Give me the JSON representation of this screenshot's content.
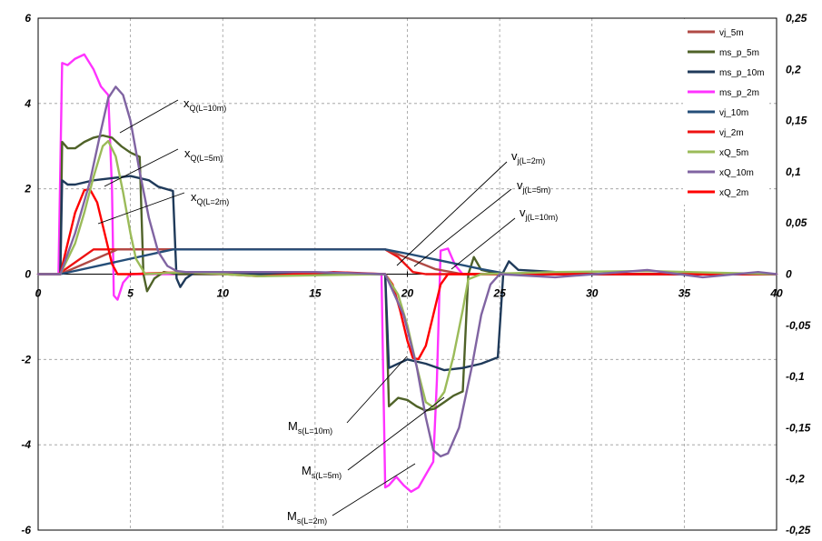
{
  "colors": {
    "vj_5m": "#b04a45",
    "ms_p_5m": "#4f6228",
    "ms_p_10m": "#1f3a5a",
    "ms_p_2m": "#ff33ff",
    "vj_10m": "#254e78",
    "vj_2m": "#ee1111",
    "xQ_5m": "#9bbb59",
    "xQ_10m": "#8064a2",
    "xQ_2m": "#ff0000"
  },
  "chart_data": {
    "type": "line",
    "title": "",
    "xlabel": "",
    "ylabel": "",
    "xlim": [
      0,
      40
    ],
    "ylim": [
      -6,
      6
    ],
    "y2lim": [
      -0.25,
      0.25
    ],
    "grid": true,
    "legend_position": "top-right",
    "x_ticks": [
      "0",
      "5",
      "10",
      "15",
      "20",
      "25",
      "30",
      "35",
      "40"
    ],
    "y_ticks": [
      "6",
      "4",
      "2",
      "0",
      "-2",
      "-4",
      "-6"
    ],
    "y2_ticks": [
      "0,25",
      "0,2",
      "0,15",
      "0,1",
      "0,05",
      "0",
      "-0,05",
      "-0,1",
      "-0,15",
      "-0,2",
      "-0,25"
    ],
    "legend": [
      "vj_5m",
      "ms_p_5m",
      "ms_p_10m",
      "ms_p_2m",
      "vj_10m",
      "vj_2m",
      "xQ_5m",
      "xQ_10m",
      "xQ_2m"
    ],
    "series": [
      {
        "name": "ms_p_2m",
        "axis": "left",
        "x": [
          0,
          1.1,
          1.3,
          1.6,
          2.0,
          2.5,
          3.0,
          3.4,
          3.8,
          4.0,
          4.1,
          4.3,
          4.6,
          5.0,
          6,
          8,
          10,
          12,
          15,
          18.6,
          18.8,
          19.0,
          19.4,
          19.8,
          20.2,
          20.6,
          21.0,
          21.4,
          21.6,
          21.8,
          22.2,
          22.6,
          23,
          25,
          28,
          30,
          35,
          40
        ],
        "y": [
          0,
          0,
          4.95,
          4.9,
          5.05,
          5.15,
          4.8,
          4.4,
          4.2,
          2.0,
          -0.5,
          -0.6,
          -0.2,
          0,
          0,
          0,
          0,
          0,
          0,
          0,
          -5.0,
          -4.95,
          -4.75,
          -4.95,
          -5.1,
          -5.0,
          -4.7,
          -4.4,
          -2.5,
          0.55,
          0.6,
          0.2,
          0,
          0,
          0,
          0,
          0,
          0
        ]
      },
      {
        "name": "ms_p_5m",
        "axis": "left",
        "x": [
          0,
          1.2,
          1.3,
          1.6,
          2.0,
          2.5,
          3.0,
          3.5,
          4.0,
          4.5,
          5.0,
          5.5,
          5.7,
          5.9,
          6.3,
          6.8,
          7.5,
          10,
          15,
          18.8,
          19.0,
          19.5,
          20.0,
          20.5,
          21.0,
          21.5,
          22.0,
          22.5,
          23.0,
          23.3,
          23.6,
          24,
          25,
          30,
          40
        ],
        "y": [
          0,
          0,
          3.1,
          2.95,
          2.95,
          3.1,
          3.2,
          3.25,
          3.2,
          3.0,
          2.85,
          2.75,
          0.0,
          -0.4,
          -0.1,
          0.05,
          0,
          0,
          0,
          0,
          -3.1,
          -2.9,
          -2.95,
          -3.1,
          -3.2,
          -3.15,
          -3.0,
          -2.85,
          -2.75,
          0.0,
          0.4,
          0.1,
          0,
          0,
          0
        ]
      },
      {
        "name": "ms_p_10m",
        "axis": "left",
        "x": [
          0,
          1.2,
          1.3,
          1.6,
          2.0,
          3.0,
          4.0,
          5.0,
          6.0,
          6.5,
          7.3,
          7.5,
          7.7,
          8.0,
          8.5,
          10,
          15,
          18.8,
          19.0,
          19.5,
          20.0,
          21.0,
          22.0,
          23.0,
          24.0,
          24.9,
          25.2,
          25.5,
          26,
          30,
          40
        ],
        "y": [
          0,
          0,
          2.2,
          2.1,
          2.1,
          2.2,
          2.25,
          2.3,
          2.2,
          2.05,
          1.95,
          -0.1,
          -0.3,
          -0.1,
          0.05,
          0,
          0,
          0,
          -2.2,
          -2.1,
          -2.0,
          -2.1,
          -2.25,
          -2.2,
          -2.1,
          -1.95,
          0.05,
          0.3,
          0.1,
          0,
          0
        ]
      },
      {
        "name": "vj_2m",
        "axis": "left",
        "x": [
          0,
          1.1,
          3.0,
          5,
          10,
          15,
          18.8,
          19.5,
          20.3,
          21,
          22,
          25,
          30,
          40
        ],
        "y": [
          0,
          0,
          0.58,
          0.58,
          0.58,
          0.58,
          0.58,
          0.4,
          0.05,
          0,
          0,
          0,
          0,
          0
        ]
      },
      {
        "name": "vj_5m",
        "axis": "left",
        "x": [
          0,
          1.2,
          4.3,
          5,
          10,
          15,
          18.8,
          20,
          21.5,
          23,
          25,
          30,
          40
        ],
        "y": [
          0,
          0,
          0.58,
          0.58,
          0.58,
          0.58,
          0.58,
          0.38,
          0.12,
          0,
          0,
          0,
          0
        ]
      },
      {
        "name": "vj_10m",
        "axis": "left",
        "x": [
          0,
          1.2,
          7.3,
          10,
          15,
          18.8,
          20,
          22,
          24,
          25.5,
          26,
          30,
          40
        ],
        "y": [
          0,
          0,
          0.58,
          0.58,
          0.58,
          0.58,
          0.48,
          0.3,
          0.12,
          0,
          0,
          0,
          0
        ]
      },
      {
        "name": "xQ_2m",
        "axis": "right",
        "x": [
          0,
          1.2,
          1.6,
          2.0,
          2.5,
          2.8,
          3.2,
          3.6,
          4.0,
          4.3,
          5,
          8,
          12,
          16,
          18.8,
          19.2,
          19.6,
          20.0,
          20.3,
          20.6,
          21.0,
          21.4,
          21.8,
          22.2,
          23,
          26,
          30,
          35,
          40
        ],
        "y": [
          0,
          0,
          0.03,
          0.06,
          0.082,
          0.083,
          0.07,
          0.04,
          0.01,
          0,
          0,
          0.002,
          -0.002,
          0.002,
          0,
          -0.01,
          -0.035,
          -0.065,
          -0.082,
          -0.083,
          -0.07,
          -0.04,
          -0.01,
          0,
          0,
          0,
          0,
          0,
          0
        ]
      },
      {
        "name": "xQ_5m",
        "axis": "right",
        "x": [
          0,
          1.2,
          2.0,
          2.5,
          3.0,
          3.5,
          3.8,
          4.2,
          4.6,
          5.0,
          5.3,
          5.8,
          8,
          12,
          18.8,
          19.5,
          20.0,
          20.5,
          21.0,
          21.4,
          22.0,
          22.5,
          23.0,
          23.3,
          24,
          28,
          33,
          40
        ],
        "y": [
          0,
          0,
          0.03,
          0.06,
          0.095,
          0.125,
          0.13,
          0.115,
          0.08,
          0.04,
          0.015,
          0,
          0.002,
          -0.002,
          0,
          -0.02,
          -0.05,
          -0.09,
          -0.125,
          -0.13,
          -0.115,
          -0.08,
          -0.035,
          -0.005,
          0,
          0.002,
          0.003,
          0
        ]
      },
      {
        "name": "xQ_10m",
        "axis": "right",
        "x": [
          0,
          1.2,
          2.0,
          2.8,
          3.4,
          3.8,
          4.2,
          4.6,
          5.0,
          5.5,
          6.0,
          6.5,
          7.0,
          7.5,
          8,
          10,
          15,
          18.8,
          19.8,
          20.5,
          21.0,
          21.4,
          21.8,
          22.2,
          22.8,
          23.5,
          24.0,
          24.5,
          25,
          28,
          33,
          36,
          39,
          40
        ],
        "y": [
          0,
          0,
          0.04,
          0.09,
          0.14,
          0.172,
          0.183,
          0.175,
          0.15,
          0.1,
          0.055,
          0.022,
          0.008,
          0.003,
          0.002,
          0.002,
          0.002,
          0,
          -0.04,
          -0.09,
          -0.14,
          -0.172,
          -0.178,
          -0.175,
          -0.15,
          -0.09,
          -0.04,
          -0.01,
          0,
          -0.003,
          0.004,
          -0.003,
          0.002,
          0
        ]
      }
    ],
    "annotations": [
      {
        "main": "x",
        "sub": "Q(L=10m)"
      },
      {
        "main": "x",
        "sub": "Q(L=5m)"
      },
      {
        "main": "x",
        "sub": "Q(L=2m)"
      },
      {
        "main": "v",
        "sub": "j(L=2m)"
      },
      {
        "main": "v",
        "sub": "j(L=5m)"
      },
      {
        "main": "v",
        "sub": "j(L=10m)"
      },
      {
        "main": "M",
        "sub": "s(L=10m)"
      },
      {
        "main": "M",
        "sub": "s(L=5m)"
      },
      {
        "main": "M",
        "sub": "s(L=2m)"
      }
    ]
  }
}
